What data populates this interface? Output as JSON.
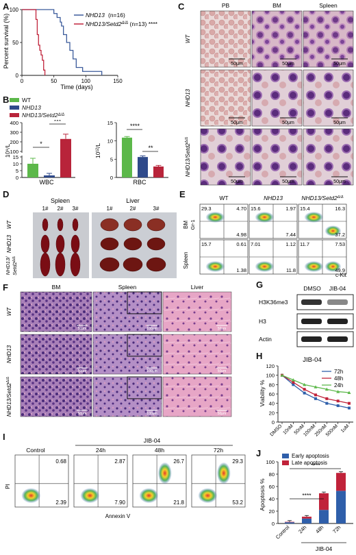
{
  "panels": {
    "A": {
      "letter": "A",
      "chart_data": {
        "type": "line",
        "ylabel": "Percent survival (%)",
        "xlabel": "Time (days)",
        "xlim": [
          0,
          150
        ],
        "ylim": [
          0,
          100
        ],
        "xticks": [
          "0",
          "50",
          "100",
          "150"
        ],
        "yticks": [
          "0",
          "50",
          "100"
        ],
        "series": [
          {
            "name": "NHD13",
            "suffix": " (n=16)",
            "color": "#3a5a9a",
            "x": [
              0,
              45,
              50,
              55,
              60,
              62,
              65,
              70,
              75,
              80,
              85,
              95,
              125
            ],
            "y": [
              100,
              100,
              94,
              88,
              81,
              75,
              62,
              50,
              38,
              25,
              12,
              6,
              0
            ]
          },
          {
            "name": "NHD13/Setd2",
            "suffix": " (n=13) ****",
            "color": "#c0223a",
            "x": [
              0,
              20,
              22,
              24,
              26,
              28,
              30,
              32,
              34,
              36
            ],
            "y": [
              100,
              100,
              85,
              62,
              46,
              38,
              31,
              23,
              8,
              0
            ]
          }
        ]
      }
    },
    "B": {
      "letter": "B",
      "legend": [
        "WT",
        "NHD13",
        "NHD13/Setd2"
      ],
      "colors": [
        "#5cb84a",
        "#2f4a8a",
        "#b8243a"
      ],
      "wbc": {
        "ylabel": "10⁹/L",
        "xlabel": "WBC",
        "chart_data": {
          "type": "bar",
          "categories": [
            "WT",
            "NHD13",
            "NHD13/Setd2"
          ],
          "values": [
            10,
            1.5,
            230
          ],
          "errors": [
            4,
            1.5,
            50
          ]
        },
        "yticks": [
          "0",
          "5",
          "10",
          "15",
          "100",
          "200",
          "300",
          "400"
        ],
        "sig": [
          "*",
          "***"
        ]
      },
      "rbc": {
        "ylabel": "10¹²/L",
        "xlabel": "RBC",
        "chart_data": {
          "type": "bar",
          "categories": [
            "WT",
            "NHD13",
            "NHD13/Setd2"
          ],
          "values": [
            10.9,
            5.6,
            3.0
          ],
          "errors": [
            0.3,
            0.3,
            0.3
          ],
          "ylim": [
            0,
            15
          ]
        },
        "yticks": [
          "0",
          "5",
          "10",
          "15"
        ],
        "sig": [
          "****",
          "**"
        ]
      }
    },
    "C": {
      "letter": "C",
      "columns": [
        "PB",
        "BM",
        "Spleen"
      ],
      "rows": [
        "WT",
        "NHD13",
        "NHD13/Setd2"
      ],
      "scale": "50μm"
    },
    "D": {
      "letter": "D",
      "spleen_title": "Spleen",
      "liver_title": "Liver",
      "cols": [
        "1#",
        "2#",
        "3#"
      ],
      "rows": [
        "WT",
        "NHD13",
        "NHD13/\nSetd2"
      ]
    },
    "E": {
      "letter": "E",
      "columns": [
        "WT",
        "NHD13",
        "NHD13/Setd2"
      ],
      "row_bm": "BM",
      "row_spleen": "Spleen",
      "ylabel": "Gr-1",
      "xlabel": "c-Kit",
      "bm": [
        [
          "29.3",
          "4.70",
          "4.98"
        ],
        [
          "15.6",
          "1.97",
          "7.44"
        ],
        [
          "15.4",
          "16.3",
          "37.2"
        ]
      ],
      "spleen": [
        [
          "15.7",
          "0.61",
          "1.38"
        ],
        [
          "7.01",
          "1.12",
          "11.8"
        ],
        [
          "11.7",
          "7.53",
          "49.9"
        ]
      ]
    },
    "F": {
      "letter": "F",
      "columns": [
        "BM",
        "Spleen",
        "Liver"
      ],
      "rows": [
        "WT",
        "NHD13",
        "NHD13/Setd2"
      ],
      "scales": [
        "50μm",
        "100μm",
        "50μm"
      ]
    },
    "G": {
      "letter": "G",
      "lanes": [
        "DMSO",
        "JIB-04"
      ],
      "bands": [
        "H3K36me3",
        "H3",
        "Actin"
      ]
    },
    "H": {
      "letter": "H",
      "title": "JIB-04",
      "ylabel": "Viability %",
      "yticks": [
        "0",
        "20",
        "40",
        "60",
        "80",
        "100",
        "120"
      ],
      "chart_data": {
        "type": "line",
        "categories": [
          "DMSO",
          "10nM",
          "50nM",
          "100nM",
          "250nM",
          "500nM",
          "1uM"
        ],
        "ylim": [
          0,
          120
        ],
        "series": [
          {
            "name": "72h",
            "color": "#2f5faa",
            "values": [
              100,
              80,
              62,
              50,
              40,
              35,
              30
            ]
          },
          {
            "name": "48h",
            "color": "#c0223a",
            "values": [
              100,
              85,
              70,
              58,
              50,
              45,
              40
            ]
          },
          {
            "name": "24h",
            "color": "#5cb84a",
            "values": [
              100,
              90,
              80,
              75,
              70,
              65,
              63
            ]
          }
        ]
      }
    },
    "I": {
      "letter": "I",
      "control": "Control",
      "group": "JIB-04",
      "times": [
        "24h",
        "48h",
        "72h"
      ],
      "ylabel": "PI",
      "xlabel": "Annexin V",
      "plots": [
        {
          "ur": "0.68",
          "lr": "2.39"
        },
        {
          "ur": "2.87",
          "lr": "7.90"
        },
        {
          "ur": "26.7",
          "lr": "21.8"
        },
        {
          "ur": "29.3",
          "lr": "53.2"
        }
      ]
    },
    "J": {
      "letter": "J",
      "ylabel": "Apoptosis %",
      "yticks": [
        "0",
        "20",
        "40",
        "60",
        "80",
        "100"
      ],
      "legend": [
        "Early apoptosis",
        "Late apoptosis"
      ],
      "colors": [
        "#2f5faa",
        "#c0223a"
      ],
      "group": "JIB-04",
      "sig": "****",
      "chart_data": {
        "type": "bar",
        "categories": [
          "Control",
          "24h",
          "48h",
          "72h"
        ],
        "ylim": [
          0,
          100
        ],
        "series": [
          {
            "name": "Early apoptosis",
            "values": [
              2,
              8,
              22,
              53
            ]
          },
          {
            "name": "Late apoptosis",
            "values": [
              0.7,
              3,
              27,
              29
            ]
          }
        ]
      }
    }
  }
}
